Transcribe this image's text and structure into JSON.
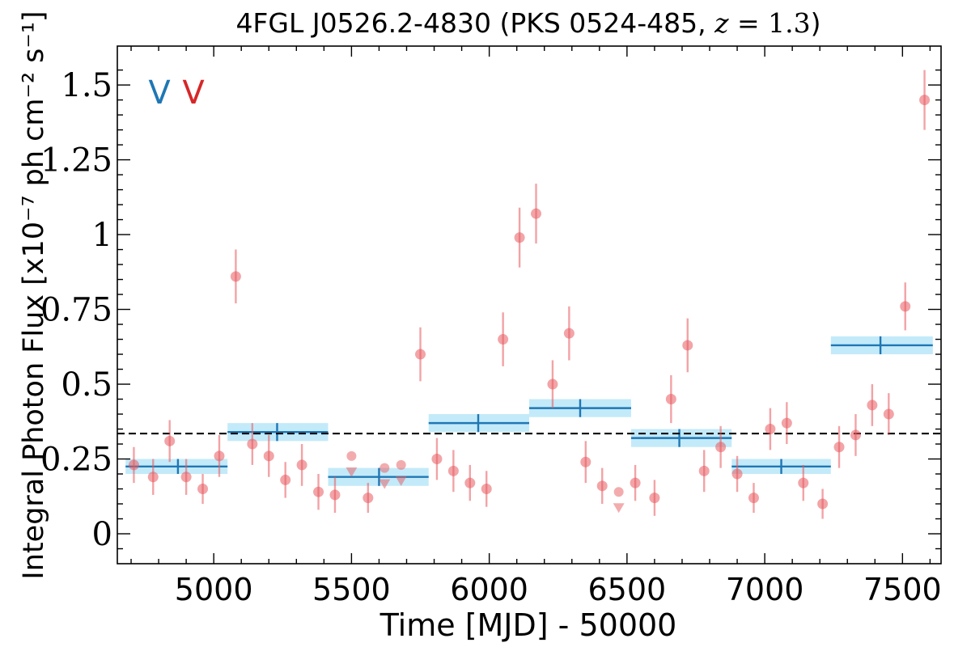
{
  "chart_data": {
    "type": "scatter",
    "title": "4FGL J0526.2-4830 (PKS 0524-485, z = 1.3)",
    "title_parts": {
      "prefix": "4FGL J0526.2-4830 (PKS 0524-485, ",
      "z_var": "z",
      "z_eq": " = 1.3",
      "suffix": ")"
    },
    "xlabel": "Time [MJD] - 50000",
    "ylabel": "Integral Photon Flux [x10⁻⁷ ph cm⁻² s⁻¹]",
    "xlim": [
      4650,
      7640
    ],
    "ylim": [
      -0.1,
      1.63
    ],
    "x_ticks": [
      5000,
      5500,
      6000,
      6500,
      7000,
      7500
    ],
    "x_ticklabels": [
      "5000",
      "5500",
      "6000",
      "6500",
      "7000",
      "7500"
    ],
    "y_ticks": [
      0,
      0.25,
      0.5,
      0.75,
      1,
      1.25,
      1.5
    ],
    "y_ticklabels": [
      "0",
      "0.25",
      "0.5",
      "0.75",
      "1",
      "1.25",
      "1.5"
    ],
    "annotations": [
      {
        "text": "V",
        "color": "#1f77b4"
      },
      {
        "text": "V",
        "color": "#d62728"
      }
    ],
    "mean_flux": 0.335,
    "colors": {
      "points": "#e8595e",
      "binned": "#1f77b4",
      "binned_band": "#b9e6f8",
      "mean_line": "#000000"
    },
    "series": [
      {
        "kind": "detections",
        "x": [
          4710,
          4780,
          4840,
          4900,
          4960,
          5020,
          5080,
          5140,
          5200,
          5260,
          5320,
          5380,
          5440,
          5560,
          5750,
          5810,
          5870,
          5930,
          5990,
          6050,
          6110,
          6170,
          6230,
          6290,
          6350,
          6410,
          6530,
          6600,
          6660,
          6720,
          6780,
          6840,
          6900,
          6960,
          7020,
          7080,
          7140,
          7210,
          7270,
          7330,
          7390,
          7450,
          7510,
          7580
        ],
        "y": [
          0.23,
          0.19,
          0.31,
          0.19,
          0.15,
          0.26,
          0.86,
          0.3,
          0.26,
          0.18,
          0.23,
          0.14,
          0.13,
          0.12,
          0.6,
          0.25,
          0.21,
          0.17,
          0.15,
          0.65,
          0.99,
          1.07,
          0.5,
          0.67,
          0.24,
          0.16,
          0.17,
          0.12,
          0.45,
          0.63,
          0.21,
          0.29,
          0.2,
          0.12,
          0.35,
          0.37,
          0.17,
          0.1,
          0.29,
          0.33,
          0.43,
          0.4,
          0.76,
          1.45
        ],
        "yerr": [
          0.06,
          0.06,
          0.07,
          0.06,
          0.05,
          0.07,
          0.09,
          0.07,
          0.07,
          0.06,
          0.07,
          0.06,
          0.06,
          0.05,
          0.09,
          0.07,
          0.07,
          0.06,
          0.06,
          0.09,
          0.1,
          0.1,
          0.08,
          0.09,
          0.07,
          0.06,
          0.06,
          0.06,
          0.08,
          0.09,
          0.07,
          0.07,
          0.06,
          0.05,
          0.07,
          0.07,
          0.06,
          0.05,
          0.07,
          0.07,
          0.07,
          0.07,
          0.08,
          0.1
        ]
      },
      {
        "kind": "upper_limits",
        "x": [
          5500,
          5620,
          5680,
          6470
        ],
        "y": [
          0.26,
          0.22,
          0.23,
          0.14
        ]
      },
      {
        "kind": "binned",
        "x_start": [
          4680,
          5050,
          5415,
          5780,
          6145,
          6515,
          6880,
          7240
        ],
        "x_end": [
          5050,
          5415,
          5780,
          6145,
          6515,
          6880,
          7240,
          7610
        ],
        "x_center": [
          4870,
          5230,
          5600,
          5960,
          6330,
          6690,
          7060,
          7420
        ],
        "y": [
          0.225,
          0.34,
          0.19,
          0.37,
          0.42,
          0.32,
          0.225,
          0.63
        ],
        "yerr": [
          0.025,
          0.03,
          0.03,
          0.03,
          0.03,
          0.03,
          0.025,
          0.03
        ]
      }
    ],
    "grid": false,
    "legend": "none"
  }
}
